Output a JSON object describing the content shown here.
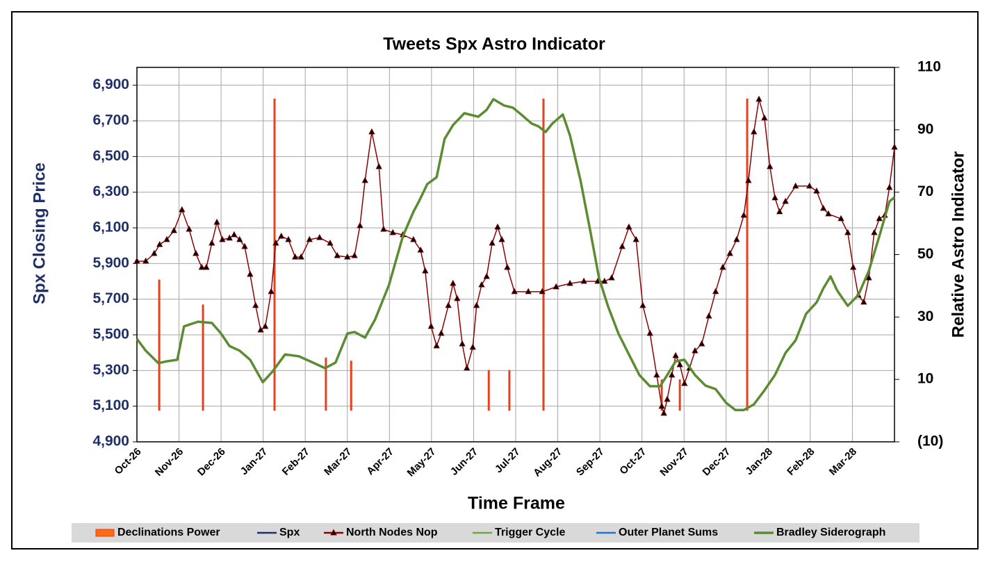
{
  "chart_data": {
    "type": "combo",
    "title": "Tweets Spx Astro Indicator",
    "x_label": "Time Frame",
    "y_label": "Spx Closing Price",
    "y2_label": "Relative Astro Indicator",
    "xlim": [
      0,
      18
    ],
    "xticks": [
      {
        "value": 0,
        "label": "Oct-26"
      },
      {
        "value": 1,
        "label": "Nov-26"
      },
      {
        "value": 2,
        "label": "Dec-26"
      },
      {
        "value": 3,
        "label": "Jan-27"
      },
      {
        "value": 4,
        "label": "Feb-27"
      },
      {
        "value": 5,
        "label": "Mar-27"
      },
      {
        "value": 6,
        "label": "Apr-27"
      },
      {
        "value": 7,
        "label": "May-27"
      },
      {
        "value": 8,
        "label": "Jun-27"
      },
      {
        "value": 9,
        "label": "Jul-27"
      },
      {
        "value": 10,
        "label": "Aug-27"
      },
      {
        "value": 11,
        "label": "Sep-27"
      },
      {
        "value": 12,
        "label": "Oct-27"
      },
      {
        "value": 13,
        "label": "Nov-27"
      },
      {
        "value": 14,
        "label": "Dec-27"
      },
      {
        "value": 15,
        "label": "Jan-28"
      },
      {
        "value": 16,
        "label": "Feb-28"
      },
      {
        "value": 17,
        "label": "Mar-28"
      }
    ],
    "ylim": [
      4900,
      7000
    ],
    "yticks": [
      {
        "value": 4900,
        "label": "4,900"
      },
      {
        "value": 5100,
        "label": "5,100"
      },
      {
        "value": 5300,
        "label": "5,300"
      },
      {
        "value": 5500,
        "label": "5,500"
      },
      {
        "value": 5700,
        "label": "5,700"
      },
      {
        "value": 5900,
        "label": "5,900"
      },
      {
        "value": 6100,
        "label": "6,100"
      },
      {
        "value": 6300,
        "label": "6,300"
      },
      {
        "value": 6500,
        "label": "6,500"
      },
      {
        "value": 6700,
        "label": "6,700"
      },
      {
        "value": 6900,
        "label": "6,900"
      }
    ],
    "y2lim": [
      -10,
      110
    ],
    "y2ticks": [
      {
        "value": -10,
        "label": "(10)"
      },
      10,
      30,
      50,
      70,
      90,
      110
    ],
    "grid": true,
    "series": [
      {
        "name": "Declinations Power",
        "type": "bar",
        "axis": "y2",
        "color": "#e8401c",
        "x": [
          0.53,
          1.57,
          3.27,
          4.49,
          5.09,
          8.36,
          8.85,
          9.66,
          12.47,
          12.9,
          14.5
        ],
        "values": [
          42,
          34,
          100,
          17,
          16,
          13,
          13,
          100,
          10,
          10,
          100
        ]
      },
      {
        "name": "Spx",
        "type": "line",
        "color": "#1f2f6e",
        "x": [],
        "values": []
      },
      {
        "name": "North Nodes Nop",
        "type": "line",
        "marker": "triangle",
        "color": "#8b0000",
        "x": [
          0,
          0.21,
          0.41,
          0.54,
          0.71,
          0.88,
          1.07,
          1.24,
          1.4,
          1.54,
          1.65,
          1.78,
          1.9,
          2.03,
          2.2,
          2.31,
          2.44,
          2.56,
          2.69,
          2.82,
          2.94,
          3.05,
          3.19,
          3.3,
          3.43,
          3.6,
          3.76,
          3.9,
          4.1,
          4.34,
          4.59,
          4.76,
          5,
          5.17,
          5.3,
          5.42,
          5.58,
          5.75,
          5.86,
          6.08,
          6.32,
          6.57,
          6.74,
          6.85,
          6.99,
          7.12,
          7.23,
          7.4,
          7.51,
          7.61,
          7.73,
          7.84,
          7.98,
          8.07,
          8.19,
          8.31,
          8.44,
          8.57,
          8.67,
          8.8,
          8.97,
          9.3,
          9.63,
          9.96,
          10.29,
          10.62,
          10.95,
          11.11,
          11.28,
          11.53,
          11.69,
          11.86,
          12.02,
          12.19,
          12.35,
          12.47,
          12.52,
          12.6,
          12.71,
          12.8,
          12.9,
          13.01,
          13.13,
          13.26,
          13.42,
          13.59,
          13.75,
          13.92,
          14.09,
          14.25,
          14.42,
          14.53,
          14.66,
          14.78,
          14.91,
          15.04,
          15.16,
          15.27,
          15.41,
          15.65,
          15.98,
          16.15,
          16.31,
          16.43,
          16.73,
          16.89,
          17.02,
          17.14,
          17.27,
          17.39,
          17.52,
          17.64,
          17.77,
          17.88,
          18
        ],
        "values": [
          5913,
          5913,
          5956,
          6006,
          6034,
          6084,
          6201,
          6092,
          5956,
          5878,
          5878,
          6014,
          6131,
          6034,
          6042,
          6061,
          6034,
          5995,
          5839,
          5664,
          5527,
          5547,
          5742,
          6014,
          6053,
          6034,
          5936,
          5936,
          6034,
          6045,
          6014,
          5944,
          5936,
          5944,
          6112,
          6365,
          6638,
          6443,
          6092,
          6073,
          6061,
          6034,
          5975,
          5858,
          5547,
          5438,
          5508,
          5664,
          5788,
          5703,
          5449,
          5313,
          5430,
          5664,
          5780,
          5827,
          6014,
          6104,
          6034,
          5878,
          5742,
          5742,
          5742,
          5769,
          5788,
          5800,
          5800,
          5800,
          5819,
          5995,
          6104,
          6034,
          5664,
          5508,
          5274,
          5099,
          5060,
          5138,
          5274,
          5383,
          5332,
          5227,
          5313,
          5410,
          5449,
          5605,
          5742,
          5878,
          5956,
          6034,
          6170,
          6365,
          6638,
          6821,
          6716,
          6443,
          6268,
          6190,
          6248,
          6334,
          6334,
          6306,
          6209,
          6178,
          6151,
          6073,
          5878,
          5722,
          5683,
          5819,
          6073,
          6151,
          6170,
          6326,
          6552
        ]
      },
      {
        "name": "Trigger Cycle",
        "type": "line",
        "color": "#70a845",
        "x": [],
        "values": []
      },
      {
        "name": "Outer Planet Sums",
        "type": "line",
        "color": "#1f77c8",
        "x": [],
        "values": []
      },
      {
        "name": "Bradley Siderograph",
        "type": "line",
        "axis": "y2",
        "width": 3.5,
        "color": "#5b8c32",
        "x": [
          0,
          0.21,
          0.51,
          0.71,
          0.96,
          1.12,
          1.45,
          1.78,
          2,
          2.2,
          2.44,
          2.69,
          2.99,
          3.22,
          3.52,
          3.85,
          4.18,
          4.47,
          4.72,
          5,
          5.17,
          5.42,
          5.66,
          5.99,
          6.32,
          6.57,
          6.7,
          6.9,
          7.12,
          7.31,
          7.51,
          7.78,
          8.11,
          8.31,
          8.47,
          8.72,
          8.93,
          9.13,
          9.38,
          9.54,
          9.71,
          9.87,
          10.12,
          10.29,
          10.54,
          10.78,
          10.98,
          11.19,
          11.44,
          11.69,
          11.94,
          12.19,
          12.43,
          12.6,
          12.8,
          13.01,
          13.26,
          13.51,
          13.75,
          14,
          14.22,
          14.42,
          14.66,
          14.91,
          15.16,
          15.41,
          15.65,
          15.9,
          16.15,
          16.31,
          16.48,
          16.64,
          16.89,
          17.14,
          17.39,
          17.64,
          17.88,
          18
        ],
        "values": [
          23,
          19.2,
          15.2,
          15.8,
          16.3,
          27,
          28.5,
          28.1,
          24.7,
          20.7,
          19.2,
          16.3,
          9.1,
          12.5,
          18,
          17.4,
          15.4,
          13.6,
          15.4,
          24.7,
          25.2,
          23.4,
          29.2,
          40.3,
          55.9,
          63.7,
          67,
          72.6,
          74.8,
          87.1,
          91.5,
          95.3,
          94.2,
          96.4,
          99.8,
          97.8,
          97.1,
          94.9,
          92,
          91.1,
          89.3,
          92,
          94.9,
          88.2,
          73.7,
          57,
          42.5,
          33.6,
          24.7,
          18,
          11.4,
          7.8,
          7.8,
          11.4,
          15.8,
          16.3,
          11.4,
          8,
          6.9,
          2.5,
          0.2,
          0.2,
          2,
          6.5,
          11.4,
          18.5,
          22.5,
          31,
          34.7,
          39.2,
          43,
          38.5,
          33.6,
          37,
          44.8,
          55.9,
          67,
          68.4
        ]
      }
    ]
  }
}
